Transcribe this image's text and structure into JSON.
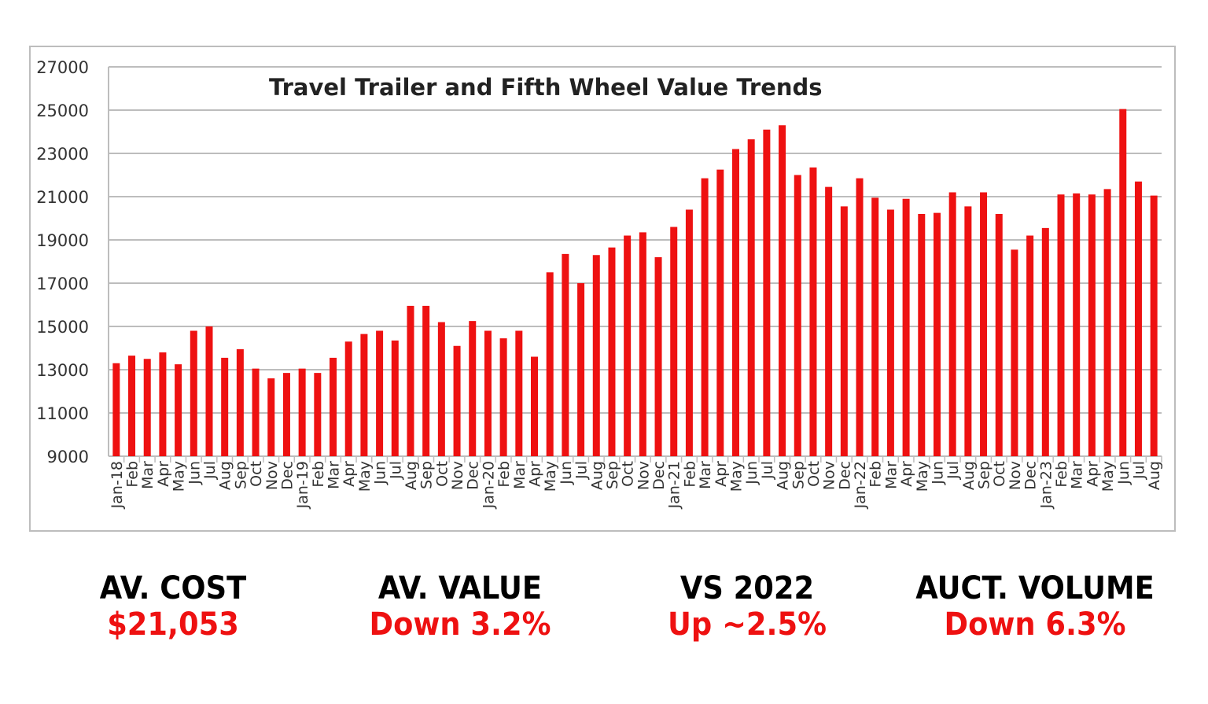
{
  "chart_data": {
    "type": "bar",
    "title": "Travel Trailer and Fifth Wheel Value Trends",
    "xlabel": "",
    "ylabel": "",
    "ylim": [
      9000,
      27000
    ],
    "yticks": [
      9000,
      11000,
      13000,
      15000,
      17000,
      19000,
      21000,
      23000,
      25000,
      27000
    ],
    "grid": true,
    "bar_color": "#ee1111",
    "categories": [
      "Jan-18",
      "Feb",
      "Mar",
      "Apr",
      "May",
      "Jun",
      "Jul",
      "Aug",
      "Sep",
      "Oct",
      "Nov",
      "Dec",
      "Jan-19",
      "Feb",
      "Mar",
      "Apr",
      "May",
      "Jun",
      "Jul",
      "Aug",
      "Sep",
      "Oct",
      "Nov",
      "Dec",
      "Jan-20",
      "Feb",
      "Mar",
      "Apr",
      "May",
      "Jun",
      "Jul",
      "Aug",
      "Sep",
      "Oct",
      "Nov",
      "Dec",
      "Jan-21",
      "Feb",
      "Mar",
      "Apr",
      "May",
      "Jun",
      "Jul",
      "Aug",
      "Sep",
      "Oct",
      "Nov",
      "Dec",
      "Jan-22",
      "Feb",
      "Mar",
      "Apr",
      "May",
      "Jun",
      "Jul",
      "Aug",
      "Sep",
      "Oct",
      "Nov",
      "Dec",
      "Jan-23",
      "Feb",
      "Mar",
      "Apr",
      "May",
      "Jun",
      "Jul",
      "Aug"
    ],
    "values": [
      13300,
      13650,
      13500,
      13800,
      13250,
      14800,
      15000,
      13550,
      13950,
      13050,
      12600,
      12850,
      13050,
      12850,
      13550,
      14300,
      14650,
      14800,
      14350,
      15950,
      15950,
      15200,
      14100,
      15250,
      14800,
      14450,
      14800,
      13600,
      17500,
      18350,
      17000,
      18300,
      18650,
      19200,
      19350,
      18200,
      19600,
      20400,
      21850,
      22250,
      23200,
      23650,
      24100,
      24300,
      22000,
      22350,
      21450,
      20550,
      21850,
      20950,
      20400,
      20900,
      20200,
      20250,
      21200,
      20550,
      21200,
      20200,
      18550,
      19200,
      19550,
      21100,
      21150,
      21100,
      21350,
      25050,
      21700,
      21050
    ]
  },
  "stats": [
    {
      "label": "AV. COST",
      "value": "$21,053"
    },
    {
      "label": "AV. VALUE",
      "value": "Down 3.2%"
    },
    {
      "label": "VS 2022",
      "value": "Up ~2.5%"
    },
    {
      "label": "AUCT. VOLUME",
      "value": "Down 6.3%"
    }
  ]
}
